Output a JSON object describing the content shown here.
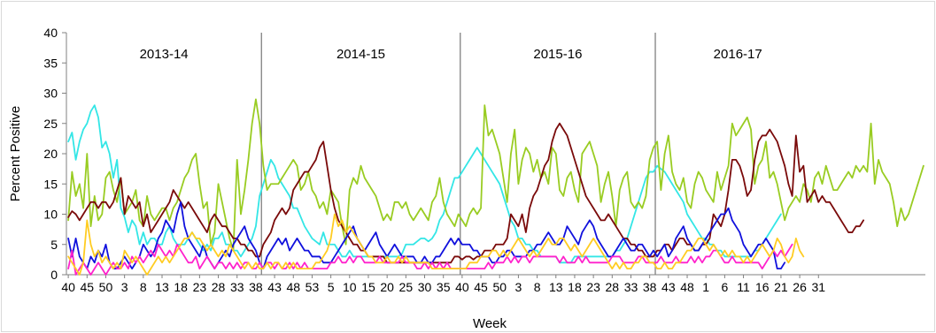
{
  "chart_data": {
    "type": "line",
    "title": "",
    "xlabel": "Week",
    "ylabel": "Percent Positive",
    "ylim": [
      0,
      40
    ],
    "yticks": [
      0,
      5,
      10,
      15,
      20,
      25,
      30,
      35,
      40
    ],
    "xtick_labels": [
      "40",
      "45",
      "50",
      "3",
      "8",
      "13",
      "18",
      "23",
      "28",
      "33",
      "38",
      "43",
      "48",
      "53",
      "5",
      "10",
      "15",
      "20",
      "25",
      "30",
      "35",
      "40",
      "45",
      "50",
      "3",
      "8",
      "13",
      "18",
      "23",
      "28",
      "33",
      "38",
      "43",
      "48",
      "1",
      "6",
      "11",
      "16",
      "21",
      "26",
      "31"
    ],
    "week_start": 40,
    "seasons": [
      {
        "label": "2013-14",
        "start_index": 0,
        "n_weeks": 52
      },
      {
        "label": "2014-15",
        "start_index": 52,
        "n_weeks": 53
      },
      {
        "label": "2015-16",
        "start_index": 105,
        "n_weeks": 52
      },
      {
        "label": "2016-17",
        "start_index": 157,
        "n_weeks": 44
      }
    ],
    "grid": false,
    "legend": "none",
    "series": [
      {
        "color": "#33e6e6",
        "values": [
          22,
          23.5,
          19,
          22,
          24,
          25,
          27,
          28,
          26,
          21,
          22,
          20,
          16,
          19,
          11,
          9.5,
          7,
          9,
          8,
          5,
          7,
          5,
          6,
          6,
          5,
          5,
          7,
          8,
          6,
          5,
          5,
          5,
          6,
          7,
          6,
          5,
          4,
          5,
          4,
          6,
          6,
          7,
          5,
          5,
          4,
          4,
          3,
          4,
          5,
          6,
          8,
          13,
          15,
          17,
          19,
          18,
          16,
          15,
          14,
          13,
          11,
          11,
          9.5,
          8,
          7,
          6,
          5.5,
          5,
          7,
          5,
          5,
          5,
          4,
          3,
          3,
          4,
          3,
          3,
          3,
          3,
          3,
          3,
          3,
          3,
          3,
          3,
          3,
          3,
          3,
          3.5,
          5,
          5,
          5,
          5.5,
          6,
          6,
          5.5,
          6,
          7,
          9,
          10,
          12,
          14,
          16,
          16,
          17,
          18,
          19,
          20,
          21,
          20,
          19,
          18,
          17,
          16,
          15,
          13,
          11,
          9,
          8,
          6,
          6,
          5,
          5,
          4,
          4,
          3,
          3,
          3,
          3,
          3,
          2,
          2,
          2,
          2,
          3,
          3,
          3,
          3,
          3,
          3,
          3,
          3,
          3,
          3,
          3,
          4,
          4,
          5,
          6,
          8,
          10,
          12,
          14,
          16,
          17,
          17,
          18,
          17.5,
          17,
          16,
          15,
          14,
          13,
          12,
          10,
          9,
          8,
          7,
          6,
          6,
          5,
          5,
          4,
          4,
          3,
          3,
          3,
          3,
          3,
          3,
          3,
          3,
          4,
          4,
          5,
          6,
          7,
          8,
          9,
          10
        ]
      },
      {
        "color": "#99cc22",
        "values": [
          9,
          17,
          13,
          15,
          11,
          20,
          8,
          13,
          9,
          10,
          16,
          17,
          14,
          12,
          16,
          10,
          11,
          12,
          14,
          9,
          8,
          13,
          10,
          9,
          10,
          11,
          11,
          9,
          11,
          12,
          14,
          16,
          17,
          19,
          20,
          15,
          11,
          12,
          5,
          7,
          15,
          12,
          9,
          6,
          4,
          19,
          10,
          14,
          19,
          25,
          29,
          25,
          18,
          14,
          15,
          15,
          15,
          16,
          17,
          18,
          19,
          18,
          14,
          15,
          17,
          14,
          13,
          11,
          12,
          10,
          14,
          13,
          12,
          8,
          5,
          14,
          16,
          15,
          18,
          16,
          15,
          14,
          13,
          11,
          9,
          10,
          9,
          12,
          12,
          11,
          12,
          10,
          9,
          10,
          11,
          10,
          9,
          12,
          13,
          16,
          12,
          10,
          9,
          8,
          10,
          9,
          8,
          10,
          11,
          10,
          11,
          28,
          23,
          24,
          22,
          20,
          16,
          12,
          20,
          24,
          15,
          19,
          21,
          20,
          17,
          19,
          16,
          17,
          15,
          21,
          20,
          14,
          13,
          16,
          17,
          14,
          12,
          20,
          21,
          22,
          20,
          18,
          12,
          15,
          17,
          13,
          8,
          14,
          16,
          17,
          12,
          11,
          12,
          11,
          13,
          19,
          21,
          22,
          14,
          20,
          23,
          17,
          15,
          14,
          16,
          12,
          11,
          15,
          17,
          16,
          14,
          13,
          12,
          17,
          14,
          16,
          18,
          25,
          23,
          24,
          25,
          26,
          24,
          15,
          18,
          19,
          22,
          16,
          17,
          15,
          12,
          9,
          11,
          12,
          13,
          12,
          15,
          14,
          12,
          16,
          17,
          15,
          18,
          16,
          14,
          14,
          15,
          16,
          17,
          16,
          18,
          17,
          18,
          17,
          25,
          15,
          19,
          17,
          16,
          15,
          12,
          8,
          11,
          9,
          10,
          12,
          14,
          16,
          18
        ]
      },
      {
        "color": "#7a0a0a",
        "values": [
          9.5,
          10.5,
          10,
          9,
          10,
          11,
          12,
          12,
          11,
          12,
          12,
          11,
          12,
          14,
          16,
          10,
          13,
          12,
          11,
          12,
          8,
          10,
          7,
          8,
          9,
          10,
          11,
          12,
          14,
          13,
          12,
          11,
          12,
          11,
          10,
          9,
          8,
          7,
          9,
          10,
          9,
          8,
          8,
          7,
          6,
          6,
          5,
          5,
          4,
          4,
          3,
          3,
          5,
          6,
          7,
          9,
          10,
          11,
          10,
          11,
          14,
          15,
          16,
          17,
          17,
          18,
          19,
          21,
          22,
          18,
          14,
          11,
          9,
          8,
          7,
          6,
          5,
          5,
          4,
          4,
          3,
          3,
          3,
          3,
          3,
          2,
          2,
          2,
          2,
          2,
          2,
          2,
          2,
          2,
          2,
          2,
          2,
          2,
          2,
          2,
          2,
          2,
          2,
          3,
          3,
          2.5,
          3,
          3,
          2.5,
          3,
          3,
          4,
          4,
          4,
          5,
          5,
          5,
          6,
          10,
          9,
          8,
          10,
          7,
          11,
          13,
          14,
          16,
          18,
          19,
          22,
          24,
          25,
          24,
          23,
          21,
          19,
          17,
          15,
          13,
          12,
          11,
          10,
          9,
          9,
          10,
          9,
          8,
          7,
          6,
          6,
          5,
          5,
          4,
          4,
          3,
          3,
          3,
          4,
          4,
          5,
          5,
          4,
          5,
          6,
          6,
          5,
          5,
          4,
          4,
          5,
          5,
          6,
          10,
          9,
          8,
          10,
          14,
          19,
          19,
          18,
          16,
          13,
          14,
          19,
          22,
          23,
          23,
          24,
          23,
          22,
          20,
          18,
          15,
          13,
          23,
          17,
          18,
          12,
          13,
          14,
          12,
          13,
          12,
          12,
          11,
          10,
          9,
          8,
          7,
          7,
          8,
          8,
          9
        ]
      },
      {
        "color": "#1111dd",
        "values": [
          6,
          3,
          6,
          3,
          2,
          1,
          3,
          2,
          4,
          3,
          5,
          2,
          1,
          1,
          2,
          3,
          2,
          1,
          2,
          3,
          5,
          4,
          3,
          4,
          6,
          7,
          9,
          8,
          7,
          10,
          12,
          8,
          6,
          5,
          4,
          3,
          5,
          3,
          2,
          1,
          2,
          3,
          4,
          3,
          5,
          6,
          7,
          8,
          6,
          5,
          4,
          2,
          1,
          3,
          4,
          5,
          6,
          5,
          6,
          4,
          5,
          6,
          5,
          4,
          4,
          3,
          3,
          3,
          2,
          2,
          2,
          3,
          4,
          5,
          6,
          7,
          8,
          6,
          5,
          4,
          5,
          6,
          7,
          5,
          4,
          3,
          4,
          5,
          4,
          3,
          3,
          3,
          3,
          2,
          2,
          3,
          2,
          2,
          3,
          3,
          4,
          5,
          6,
          5,
          6,
          5,
          5,
          5,
          4,
          4,
          3,
          3,
          3,
          2,
          2,
          3,
          3,
          4,
          4,
          3,
          3,
          3,
          3,
          4,
          4,
          5,
          5,
          6,
          7,
          6,
          5,
          5,
          6,
          8,
          7,
          6,
          5,
          7,
          8,
          9,
          8,
          6,
          5,
          4,
          3,
          3,
          4,
          5,
          6,
          5,
          4,
          4,
          5,
          5,
          4,
          3,
          4,
          3,
          4,
          5,
          3,
          4,
          6,
          7,
          8,
          6,
          5,
          4,
          4,
          5,
          6,
          7,
          8,
          9,
          10,
          10,
          11,
          9,
          8,
          7,
          5,
          4,
          3,
          4,
          5,
          5,
          6,
          5,
          4,
          1,
          1,
          2
        ]
      },
      {
        "color": "#ff22cc",
        "values": [
          1,
          4,
          0,
          1,
          2,
          1,
          0,
          1,
          2,
          1,
          0,
          1,
          2,
          1,
          1,
          2,
          1,
          3,
          2,
          3,
          2,
          3,
          4,
          3,
          5,
          4,
          3,
          4,
          3,
          5,
          4,
          3,
          2,
          2,
          3,
          1,
          2,
          3,
          2,
          1,
          2,
          2,
          1,
          2,
          1,
          2,
          1,
          2,
          2,
          1,
          1,
          2,
          1,
          2,
          2,
          1,
          2,
          1,
          1,
          2,
          1,
          2,
          1,
          2,
          1,
          1,
          1,
          1,
          1,
          1,
          2,
          2,
          3,
          2,
          2,
          3,
          2,
          3,
          3,
          2,
          2,
          2,
          2,
          3,
          2,
          2,
          2,
          2,
          2,
          3,
          2,
          2,
          2,
          1,
          1,
          2,
          1,
          2,
          1,
          2,
          1,
          2,
          1,
          1,
          1,
          1,
          1,
          1,
          1,
          1,
          1,
          1,
          2,
          1,
          2,
          2,
          2,
          3,
          2,
          3,
          2,
          3,
          3,
          2,
          3,
          3,
          3,
          3,
          3,
          3,
          3,
          2,
          3,
          2,
          2,
          2,
          3,
          2,
          3,
          2,
          2,
          2,
          2,
          2,
          2,
          3,
          3,
          3,
          2,
          2,
          2,
          2,
          3,
          3,
          2,
          2,
          2,
          2,
          3,
          2,
          2,
          2,
          3,
          2,
          2,
          2,
          3,
          2,
          3,
          2,
          3,
          3,
          4,
          4,
          3,
          2,
          2,
          3,
          2,
          2,
          2,
          2,
          2,
          2,
          2,
          1,
          2,
          3,
          4,
          3,
          4,
          3,
          4,
          5
        ]
      },
      {
        "color": "#ffcc22",
        "values": [
          3,
          2,
          1,
          0,
          2,
          9,
          5,
          3,
          4,
          2,
          3,
          2,
          1,
          2,
          1,
          4,
          3,
          2,
          3,
          2,
          1,
          0,
          1,
          2,
          3,
          2,
          3,
          2,
          3,
          4,
          5,
          6,
          6,
          7,
          6,
          6,
          5,
          4,
          5,
          4,
          3,
          4,
          3,
          5,
          4,
          3,
          2,
          1,
          2,
          1,
          2,
          1,
          1,
          2,
          1,
          2,
          2,
          1,
          2,
          1,
          2,
          1,
          1,
          1,
          1,
          1,
          2,
          2,
          3,
          4,
          6,
          10,
          8,
          9,
          7,
          8,
          7,
          6,
          5,
          4,
          3,
          3,
          2,
          2,
          2,
          3,
          2,
          2,
          3,
          2,
          3,
          2,
          2,
          2,
          2,
          2,
          2,
          1,
          1,
          1,
          1,
          1,
          1,
          1,
          1,
          1,
          1,
          2,
          2,
          2,
          3,
          3,
          3,
          4,
          4,
          3,
          4,
          3,
          4,
          5,
          6,
          5,
          4,
          3,
          4,
          3,
          4,
          5,
          6,
          5,
          5,
          6,
          6,
          5,
          4,
          5,
          4,
          3,
          4,
          5,
          6,
          5,
          4,
          3,
          2,
          1,
          2,
          1,
          2,
          1,
          1,
          2,
          2,
          3,
          3,
          2,
          2,
          1,
          1,
          2,
          1,
          1,
          2,
          2,
          3,
          4,
          4,
          5,
          6,
          6,
          5,
          4,
          5,
          4,
          3,
          4,
          3,
          4,
          3,
          3,
          2,
          3,
          2,
          3,
          4,
          5,
          4,
          3,
          4,
          6,
          5,
          3,
          2,
          3,
          6,
          4,
          3
        ]
      }
    ]
  }
}
